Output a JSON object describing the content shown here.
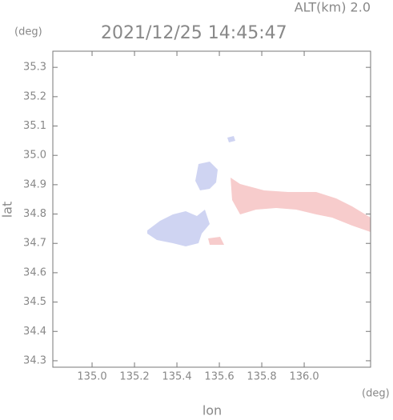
{
  "chart_data": {
    "type": "map",
    "title": "2021/12/25 14:45:47",
    "subtitle": "ALT(km) 2.0",
    "x_label": "lon",
    "y_label": "lat",
    "x_unit": "(deg)",
    "y_unit": "(deg)",
    "xlim": [
      134.815,
      136.313
    ],
    "ylim": [
      34.278,
      35.355
    ],
    "xticks": [
      {
        "value": 135.0,
        "label": "135.0"
      },
      135.2,
      135.4,
      135.6,
      135.8,
      {
        "value": 136.0,
        "label": "136.0"
      }
    ],
    "yticks": [
      34.3,
      34.4,
      34.5,
      34.6,
      34.7,
      34.8,
      34.9,
      {
        "value": 35.0,
        "label": "35.0"
      },
      35.1,
      35.2,
      35.3
    ]
  }
}
